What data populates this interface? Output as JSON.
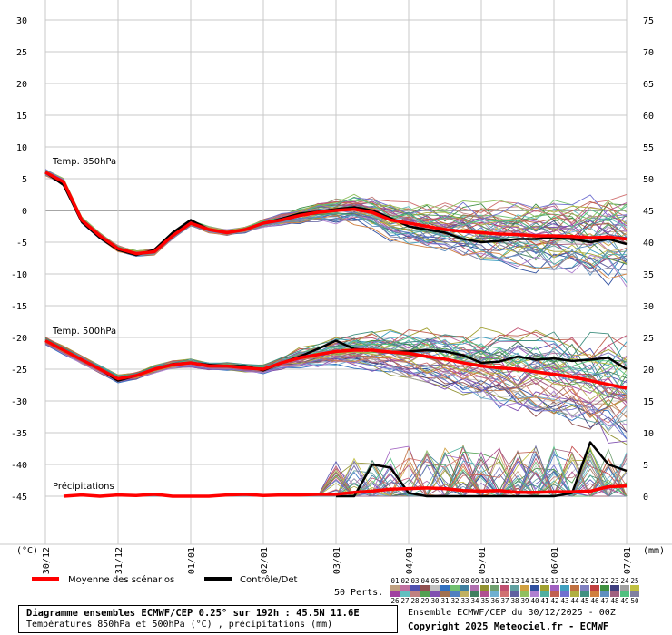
{
  "chart_data": {
    "type": "line",
    "x_ticks": [
      "30/12",
      "31/12",
      "01/01",
      "02/01",
      "03/01",
      "04/01",
      "05/01",
      "06/01",
      "07/01"
    ],
    "left_axis": {
      "unit_label": "(°C)",
      "ticks": [
        30,
        25,
        20,
        15,
        10,
        5,
        0,
        -5,
        -10,
        -15,
        -20,
        -25,
        -30,
        -35,
        -40,
        -45
      ],
      "ylim": [
        -45,
        30
      ]
    },
    "right_axis": {
      "unit_label": "(mm)",
      "ticks": [
        75,
        70,
        65,
        60,
        55,
        50,
        45,
        40,
        35,
        30,
        25,
        20,
        15,
        10,
        5,
        0
      ],
      "ylim": [
        0,
        75
      ]
    },
    "grid": true,
    "panels": [
      {
        "label": "Temp. 850hPa",
        "mean": {
          "x": [
            0,
            0.25,
            0.5,
            0.75,
            1.0,
            1.25,
            1.5,
            1.75,
            2.0,
            2.25,
            2.5,
            2.75,
            3.0,
            3.25,
            3.5,
            3.75,
            4.0,
            4.25,
            4.5,
            4.75,
            5.0,
            5.25,
            5.5,
            5.75,
            6.0,
            6.25,
            6.5,
            6.75,
            7.0,
            7.25,
            7.5,
            7.75,
            8.0
          ],
          "y": [
            6,
            4.5,
            -1.5,
            -4,
            -6,
            -6.8,
            -6.5,
            -4,
            -2,
            -3,
            -3.5,
            -3,
            -2,
            -1.5,
            -0.8,
            -0.3,
            0,
            0.2,
            -0.3,
            -1.5,
            -2,
            -2.5,
            -3,
            -3.3,
            -3.5,
            -3.7,
            -3.8,
            -4,
            -4,
            -4.1,
            -4.3,
            -4.2,
            -4.5
          ]
        },
        "control": {
          "x": [
            0,
            0.25,
            0.5,
            0.75,
            1.0,
            1.25,
            1.5,
            1.75,
            2.0,
            2.25,
            2.5,
            2.75,
            3.0,
            3.25,
            3.5,
            3.75,
            4.0,
            4.25,
            4.5,
            4.75,
            5.0,
            5.25,
            5.5,
            5.75,
            6.0,
            6.25,
            6.5,
            6.75,
            7.0,
            7.25,
            7.5,
            7.75,
            8.0
          ],
          "y": [
            6,
            4,
            -1.8,
            -4.3,
            -6.2,
            -7,
            -6.2,
            -3.5,
            -1.5,
            -3,
            -3.5,
            -3,
            -2,
            -1.3,
            -0.5,
            -0.2,
            0.2,
            0.5,
            0,
            -1.2,
            -2.5,
            -3,
            -3.5,
            -4.5,
            -5,
            -4.8,
            -4.5,
            -4.5,
            -4.2,
            -4.5,
            -5,
            -4.5,
            -5.3
          ]
        }
      },
      {
        "label": "Temp. 500hPa",
        "mean": {
          "x": [
            0,
            0.25,
            0.5,
            0.75,
            1.0,
            1.25,
            1.5,
            1.75,
            2.0,
            2.25,
            2.5,
            2.75,
            3.0,
            3.25,
            3.5,
            3.75,
            4.0,
            4.25,
            4.5,
            4.75,
            5.0,
            5.25,
            5.5,
            5.75,
            6.0,
            6.25,
            6.5,
            6.75,
            7.0,
            7.25,
            7.5,
            7.75,
            8.0
          ],
          "y": [
            -20.5,
            -22,
            -23.5,
            -25,
            -26.5,
            -26,
            -25,
            -24.3,
            -24,
            -24.5,
            -24.5,
            -24.8,
            -25,
            -24,
            -23.2,
            -22.7,
            -22.2,
            -22,
            -22,
            -22.3,
            -22.5,
            -23,
            -23.4,
            -24,
            -24.5,
            -24.8,
            -25,
            -25.4,
            -25.8,
            -26.2,
            -26.8,
            -27.4,
            -28
          ]
        },
        "control": {
          "x": [
            0,
            0.25,
            0.5,
            0.75,
            1.0,
            1.25,
            1.5,
            1.75,
            2.0,
            2.25,
            2.5,
            2.75,
            3.0,
            3.25,
            3.5,
            3.75,
            4.0,
            4.25,
            4.5,
            4.75,
            5.0,
            5.25,
            5.5,
            5.75,
            6.0,
            6.25,
            6.5,
            6.75,
            7.0,
            7.25,
            7.5,
            7.75,
            8.0
          ],
          "y": [
            -20.5,
            -22,
            -23.5,
            -25,
            -26.8,
            -26,
            -25,
            -24.2,
            -24,
            -24.3,
            -24.5,
            -24.5,
            -25.2,
            -24,
            -23,
            -21.8,
            -20.5,
            -21.8,
            -22,
            -22.3,
            -22.2,
            -22,
            -22.2,
            -22.8,
            -24,
            -23.8,
            -23,
            -23.5,
            -23.3,
            -23.7,
            -23.5,
            -23.2,
            -25
          ]
        }
      },
      {
        "label": "Précipitations",
        "unit": "mm",
        "mean": {
          "x": [
            0.25,
            0.5,
            0.75,
            1.0,
            1.25,
            1.5,
            1.75,
            2.0,
            2.25,
            2.5,
            2.75,
            3.0,
            3.25,
            3.5,
            3.75,
            4.0,
            4.25,
            4.5,
            4.75,
            5.0,
            5.25,
            5.5,
            5.75,
            6.0,
            6.25,
            6.5,
            6.75,
            7.0,
            7.25,
            7.5,
            7.75,
            8.0
          ],
          "y": [
            0,
            0.2,
            0,
            0.2,
            0.1,
            0.3,
            0,
            0,
            0,
            0.2,
            0.3,
            0.1,
            0.2,
            0.2,
            0.3,
            0.3,
            0.6,
            0.8,
            1.1,
            1.2,
            1.3,
            1.2,
            0.9,
            0.8,
            0.9,
            0.6,
            0.6,
            0.7,
            0.7,
            0.8,
            1.5,
            1.6
          ]
        },
        "control": {
          "x": [
            4.0,
            4.25,
            4.5,
            4.75,
            5.0,
            5.25,
            5.5,
            5.75,
            6.0,
            6.25,
            6.5,
            6.75,
            7.0,
            7.25,
            7.5,
            7.75,
            8.0
          ],
          "y": [
            0,
            0,
            5,
            4.5,
            0.5,
            0,
            0,
            0,
            0,
            0,
            0,
            0,
            0,
            0.5,
            8.5,
            5,
            4
          ]
        }
      }
    ],
    "legend": [
      {
        "name": "Moyenne des scénarios",
        "color": "#ff0000"
      },
      {
        "name": "Contrôle/Det",
        "color": "#000000"
      }
    ],
    "ensemble_label": "50 Perts.",
    "members": [
      "01",
      "02",
      "03",
      "04",
      "05",
      "06",
      "07",
      "08",
      "09",
      "10",
      "11",
      "12",
      "13",
      "14",
      "15",
      "16",
      "17",
      "18",
      "19",
      "20",
      "21",
      "22",
      "23",
      "24",
      "25",
      "26",
      "27",
      "28",
      "29",
      "30",
      "31",
      "32",
      "33",
      "34",
      "35",
      "36",
      "37",
      "38",
      "39",
      "40",
      "41",
      "42",
      "43",
      "44",
      "45",
      "46",
      "47",
      "48",
      "49",
      "50"
    ],
    "member_colors": [
      "#c0a080",
      "#c070a0",
      "#5050b0",
      "#905050",
      "#c0c0c0",
      "#3070c0",
      "#70c070",
      "#4080a0",
      "#b070b0",
      "#909030",
      "#70a070",
      "#c05070",
      "#60a0a0",
      "#d0a040",
      "#3050a0",
      "#a0a030",
      "#a060c0",
      "#40a0c0",
      "#c07040",
      "#8080c0",
      "#c04040",
      "#409040",
      "#404080",
      "#a0a0a0",
      "#c0c040",
      "#a040a0",
      "#60c0c0",
      "#c08080",
      "#50a050",
      "#8050b0",
      "#a07050",
      "#5080c0",
      "#c0b060",
      "#408060",
      "#b05090",
      "#70b0d0",
      "#d07070",
      "#6060a0",
      "#90c060",
      "#b080d0",
      "#50b0a0",
      "#c06050",
      "#7070d0",
      "#b0b040",
      "#409080",
      "#d08040",
      "#6090c0",
      "#a06080",
      "#50c080",
      "#8080a0"
    ]
  },
  "footer": {
    "title": "Diagramme ensembles ECMWF/CEP 0.25° sur 192h : 45.5N 11.6E",
    "subtitle": "Températures 850hPa et 500hPa (°C) , précipitations (mm)",
    "run_info": "Ensemble ECMWF/CEP du 30/12/2025 - 00Z",
    "copyright": "Copyright 2025 Meteociel.fr - ECMWF"
  }
}
